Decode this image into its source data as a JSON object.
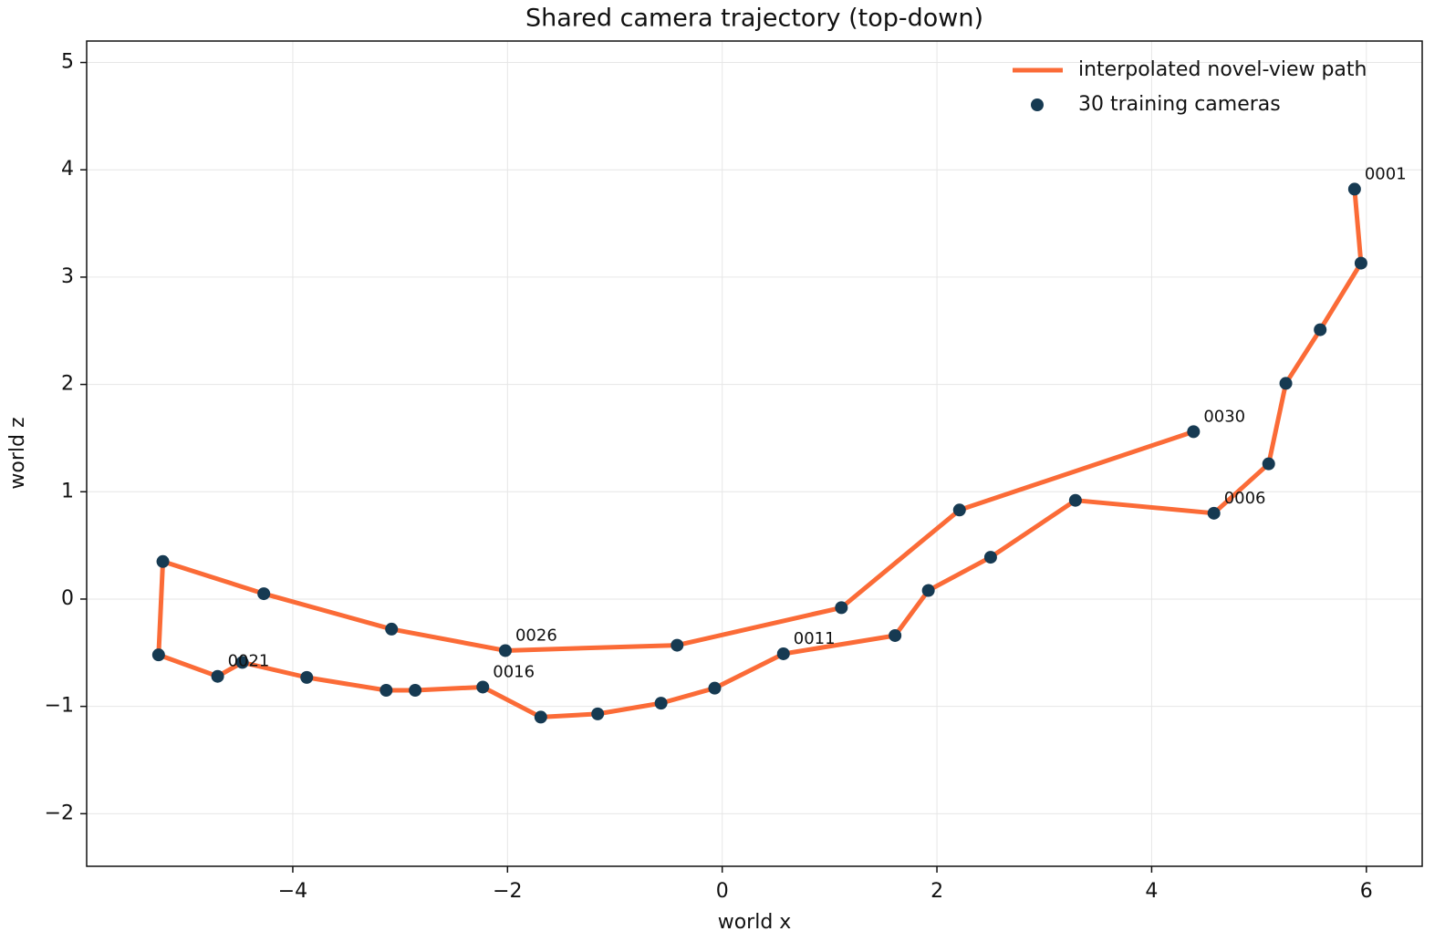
{
  "chart_data": {
    "type": "line",
    "title": "Shared camera trajectory (top-down)",
    "x_label": "world x",
    "y_label": "world z",
    "xlim": [
      -5.92,
      6.52
    ],
    "ylim": [
      -2.49,
      5.2
    ],
    "xticks": [
      {
        "value": -4,
        "label": "−4"
      },
      {
        "value": -2,
        "label": "−2"
      },
      0,
      2,
      4,
      6
    ],
    "yticks": [
      {
        "value": -2,
        "label": "−2"
      },
      {
        "value": -1,
        "label": "−1"
      },
      0,
      1,
      2,
      3,
      4,
      5
    ],
    "grid": true,
    "legend": "upper right",
    "series": [
      {
        "name": "interpolated novel-view path",
        "type": "line",
        "color": "#fb6b37",
        "x": [
          5.89,
          5.95,
          5.57,
          5.25,
          5.09,
          4.58,
          3.29,
          2.5,
          1.92,
          1.61,
          0.57,
          -0.07,
          -0.57,
          -1.16,
          -1.69,
          -2.23,
          -2.86,
          -3.13,
          -3.87,
          -4.47,
          -4.7,
          -5.25,
          -5.21,
          -4.27,
          -3.08,
          -2.02,
          -0.42,
          1.11,
          2.21,
          4.39
        ],
        "values": [
          3.82,
          3.13,
          2.51,
          2.01,
          1.26,
          0.8,
          0.92,
          0.39,
          0.08,
          -0.34,
          -0.51,
          -0.83,
          -0.97,
          -1.07,
          -1.1,
          -0.82,
          -0.85,
          -0.85,
          -0.73,
          -0.59,
          -0.72,
          -0.52,
          0.35,
          0.05,
          -0.28,
          -0.48,
          -0.43,
          -0.08,
          0.83,
          1.56
        ]
      },
      {
        "name": "30 training cameras",
        "type": "scatter",
        "color": "#163a52",
        "x": [
          5.89,
          5.95,
          5.57,
          5.25,
          5.09,
          4.58,
          3.29,
          2.5,
          1.92,
          1.61,
          0.57,
          -0.07,
          -0.57,
          -1.16,
          -1.69,
          -2.23,
          -2.86,
          -3.13,
          -3.87,
          -4.47,
          -4.7,
          -5.25,
          -5.21,
          -4.27,
          -3.08,
          -2.02,
          -0.42,
          1.11,
          2.21,
          4.39
        ],
        "values": [
          3.82,
          3.13,
          2.51,
          2.01,
          1.26,
          0.8,
          0.92,
          0.39,
          0.08,
          -0.34,
          -0.51,
          -0.83,
          -0.97,
          -1.07,
          -1.1,
          -0.82,
          -0.85,
          -0.85,
          -0.73,
          -0.59,
          -0.72,
          -0.52,
          0.35,
          0.05,
          -0.28,
          -0.48,
          -0.43,
          -0.08,
          0.83,
          1.56
        ]
      }
    ],
    "annotations": [
      {
        "text": "0001",
        "x": 5.89,
        "y": 3.82
      },
      {
        "text": "0006",
        "x": 4.58,
        "y": 0.8
      },
      {
        "text": "0011",
        "x": 0.57,
        "y": -0.51
      },
      {
        "text": "0016",
        "x": -2.23,
        "y": -0.82
      },
      {
        "text": "0021",
        "x": -4.7,
        "y": -0.72
      },
      {
        "text": "0026",
        "x": -2.02,
        "y": -0.48
      },
      {
        "text": "0030",
        "x": 4.39,
        "y": 1.56
      }
    ]
  }
}
